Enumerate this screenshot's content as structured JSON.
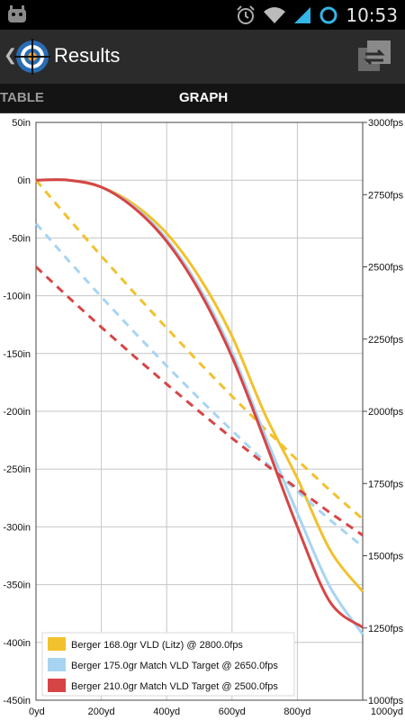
{
  "status_bar": {
    "time": "10:53"
  },
  "action_bar": {
    "back_symbol": "❮",
    "title": "Results"
  },
  "tabs": [
    {
      "label": "TABLE"
    },
    {
      "label": "GRAPH"
    }
  ],
  "chart_data": {
    "type": "line",
    "x_axis": {
      "min": 0,
      "max": 1000,
      "ticks": [
        0,
        200,
        400,
        600,
        800,
        1000
      ],
      "tick_labels": [
        "0yd",
        "200yd",
        "400yd",
        "600yd",
        "800yd",
        "1000yd"
      ]
    },
    "y_left": {
      "min": -450,
      "max": 50,
      "ticks": [
        50,
        0,
        -50,
        -100,
        -150,
        -200,
        -250,
        -300,
        -350,
        -400,
        -450
      ],
      "tick_labels": [
        "50in",
        "0in",
        "-50in",
        "-100in",
        "-150in",
        "-200in",
        "-250in",
        "-300in",
        "-350in",
        "-400in",
        "-450in"
      ]
    },
    "y_right": {
      "min": 1000,
      "max": 3000,
      "ticks": [
        3000,
        2750,
        2500,
        2250,
        2000,
        1750,
        1500,
        1250,
        1000
      ],
      "tick_labels": [
        "3000fps",
        "2750fps",
        "2500fps",
        "2250fps",
        "2000fps",
        "1750fps",
        "1500fps",
        "1250fps",
        "1000fps"
      ]
    },
    "grid": true,
    "legend_position": "bottom-left",
    "series": [
      {
        "name": "Berger 168.0gr VLD (Litz) @ 2800.0fps",
        "color": "#f2c12e",
        "drop_in": {
          "x": [
            0,
            100,
            200,
            300,
            400,
            500,
            600,
            700,
            800,
            900,
            1000
          ],
          "y": [
            0,
            0,
            -6,
            -21,
            -46,
            -84,
            -135,
            -202,
            -258,
            -320,
            -356
          ]
        },
        "velocity_fps": {
          "x": [
            0,
            100,
            200,
            300,
            400,
            500,
            600,
            700,
            800,
            900,
            1000
          ],
          "y": [
            2800,
            2667,
            2537,
            2411,
            2288,
            2168,
            2052,
            1940,
            1831,
            1726,
            1627
          ]
        }
      },
      {
        "name": "Berger 175.0gr Match VLD Target @ 2650.0fps",
        "color": "#a8d4f2",
        "drop_in": {
          "x": [
            0,
            100,
            200,
            300,
            400,
            500,
            600,
            700,
            800,
            900,
            1000
          ],
          "y": [
            0,
            0,
            -6,
            -23,
            -51,
            -93,
            -149,
            -220,
            -288,
            -352,
            -393
          ]
        },
        "velocity_fps": {
          "x": [
            0,
            100,
            200,
            300,
            400,
            500,
            600,
            700,
            800,
            900,
            1000
          ],
          "y": [
            2650,
            2521,
            2396,
            2275,
            2157,
            2043,
            1933,
            1826,
            1723,
            1624,
            1532
          ]
        }
      },
      {
        "name": "Berger 210.0gr Match VLD Target @ 2500.0fps",
        "color": "#d64545",
        "drop_in": {
          "x": [
            0,
            100,
            200,
            300,
            400,
            500,
            600,
            700,
            800,
            900,
            1000
          ],
          "y": [
            0,
            0,
            -6,
            -24,
            -53,
            -96,
            -153,
            -225,
            -300,
            -365,
            -387
          ]
        },
        "velocity_fps": {
          "x": [
            0,
            100,
            200,
            300,
            400,
            500,
            600,
            700,
            800,
            900,
            1000
          ],
          "y": [
            2500,
            2394,
            2291,
            2191,
            2094,
            1999,
            1907,
            1818,
            1732,
            1649,
            1571
          ]
        }
      }
    ]
  }
}
